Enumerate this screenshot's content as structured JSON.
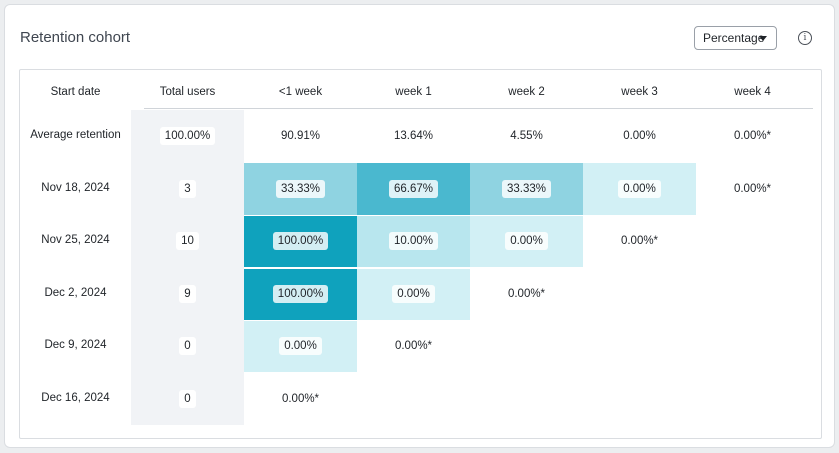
{
  "title": "Retention cohort",
  "display_mode": {
    "selected": "Percentage"
  },
  "info_icon_glyph": "i",
  "icons": {
    "dropdown": "caret-down-icon",
    "info": "info-circle-icon"
  },
  "colors": {
    "level_100": "#0fa2bd",
    "level_67": "#4ab8cf",
    "level_33": "#8fd3e1",
    "level_10": "#b8e6ee",
    "level_0": "#d2f0f5",
    "total_column": "#f1f3f6"
  },
  "columns": {
    "start_date": "Start date",
    "total_users": "Total users",
    "periods": [
      "<1 week",
      "week 1",
      "week 2",
      "week 3",
      "week 4"
    ]
  },
  "average": {
    "label": "Average retention",
    "total": "100.00%",
    "values": [
      "90.91%",
      "13.64%",
      "4.55%",
      "0.00%",
      "0.00%*"
    ]
  },
  "cohorts": [
    {
      "start": "Nov 18, 2024",
      "total": "3",
      "cells": [
        {
          "text": "33.33%",
          "level": 33.33,
          "shaded": true
        },
        {
          "text": "66.67%",
          "level": 66.67,
          "shaded": true
        },
        {
          "text": "33.33%",
          "level": 33.33,
          "shaded": true
        },
        {
          "text": "0.00%",
          "level": 0,
          "shaded": true
        },
        {
          "text": "0.00%*",
          "level": 0,
          "shaded": false
        }
      ]
    },
    {
      "start": "Nov 25, 2024",
      "total": "10",
      "cells": [
        {
          "text": "100.00%",
          "level": 100,
          "shaded": true
        },
        {
          "text": "10.00%",
          "level": 10,
          "shaded": true
        },
        {
          "text": "0.00%",
          "level": 0,
          "shaded": true
        },
        {
          "text": "0.00%*",
          "level": 0,
          "shaded": false
        }
      ]
    },
    {
      "start": "Dec 2, 2024",
      "total": "9",
      "cells": [
        {
          "text": "100.00%",
          "level": 100,
          "shaded": true
        },
        {
          "text": "0.00%",
          "level": 0,
          "shaded": true
        },
        {
          "text": "0.00%*",
          "level": 0,
          "shaded": false
        }
      ]
    },
    {
      "start": "Dec 9, 2024",
      "total": "0",
      "cells": [
        {
          "text": "0.00%",
          "level": 0,
          "shaded": true
        },
        {
          "text": "0.00%*",
          "level": 0,
          "shaded": false
        }
      ]
    },
    {
      "start": "Dec 16, 2024",
      "total": "0",
      "cells": [
        {
          "text": "0.00%*",
          "level": 0,
          "shaded": false
        }
      ]
    }
  ]
}
